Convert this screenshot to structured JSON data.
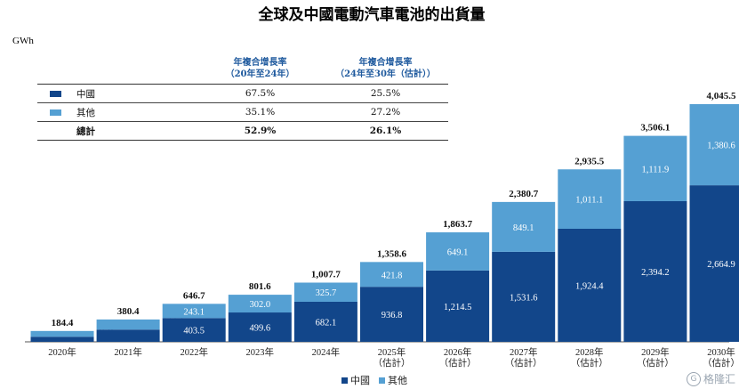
{
  "title": "全球及中國電動汽車電池的出貨量",
  "unit": "GWh",
  "colors": {
    "china": "#12468a",
    "other": "#55a0d3"
  },
  "cagr_table": {
    "headers": [
      "年複合增長率\n（20年至24年）",
      "年複合增長率\n（24年至30年（估計））"
    ],
    "rows": [
      {
        "name": "中國",
        "series": "china",
        "v1": "67.5%",
        "v2": "25.5%"
      },
      {
        "name": "其他",
        "series": "other",
        "v1": "35.1%",
        "v2": "27.2%"
      }
    ],
    "total": {
      "name": "總計",
      "v1": "52.9%",
      "v2": "26.1%"
    }
  },
  "legend": [
    {
      "name": "中國",
      "series": "china"
    },
    {
      "name": "其他",
      "series": "other"
    }
  ],
  "watermark": "格隆汇",
  "chart_data": {
    "type": "bar",
    "stacked": true,
    "categories": [
      "2020年",
      "2021年",
      "2022年",
      "2023年",
      "2024年",
      "2025年\n（估計）",
      "2026年\n（估計）",
      "2027年\n（估計）",
      "2028年\n（估計）",
      "2029年\n（估計）",
      "2030年\n（估計）"
    ],
    "series": [
      {
        "name": "中國",
        "key": "china",
        "values": [
          86.6,
          208.1,
          403.5,
          499.6,
          682.1,
          936.8,
          1214.5,
          1531.6,
          1924.4,
          2394.2,
          2664.9
        ],
        "labels": [
          "86.6",
          "208.1",
          "403.5",
          "499.6",
          "682.1",
          "936.8",
          "1,214.5",
          "1,531.6",
          "1,924.4",
          "2,394.2",
          "2,664.9"
        ]
      },
      {
        "name": "其他",
        "key": "other",
        "values": [
          97.8,
          172.3,
          243.1,
          302.0,
          325.7,
          421.8,
          649.1,
          849.1,
          1011.1,
          1111.9,
          1380.6
        ],
        "labels": [
          "97.8",
          "172.3",
          "243.1",
          "302.0",
          "325.7",
          "421.8",
          "649.1",
          "849.1",
          "1,011.1",
          "1,111.9",
          "1,380.6"
        ]
      }
    ],
    "totals": [
      184.4,
      380.4,
      646.7,
      801.6,
      1007.7,
      1358.6,
      1863.7,
      2380.7,
      2935.5,
      3506.1,
      4045.5
    ],
    "total_labels": [
      "184.4",
      "380.4",
      "646.7",
      "801.6",
      "1,007.7",
      "1,358.6",
      "1,863.7",
      "2,380.7",
      "2,935.5",
      "3,506.1",
      "4,045.5"
    ],
    "ylabel": "GWh",
    "ylim": [
      0,
      4045.5
    ],
    "grid": false,
    "legend_position": "bottom-center"
  }
}
